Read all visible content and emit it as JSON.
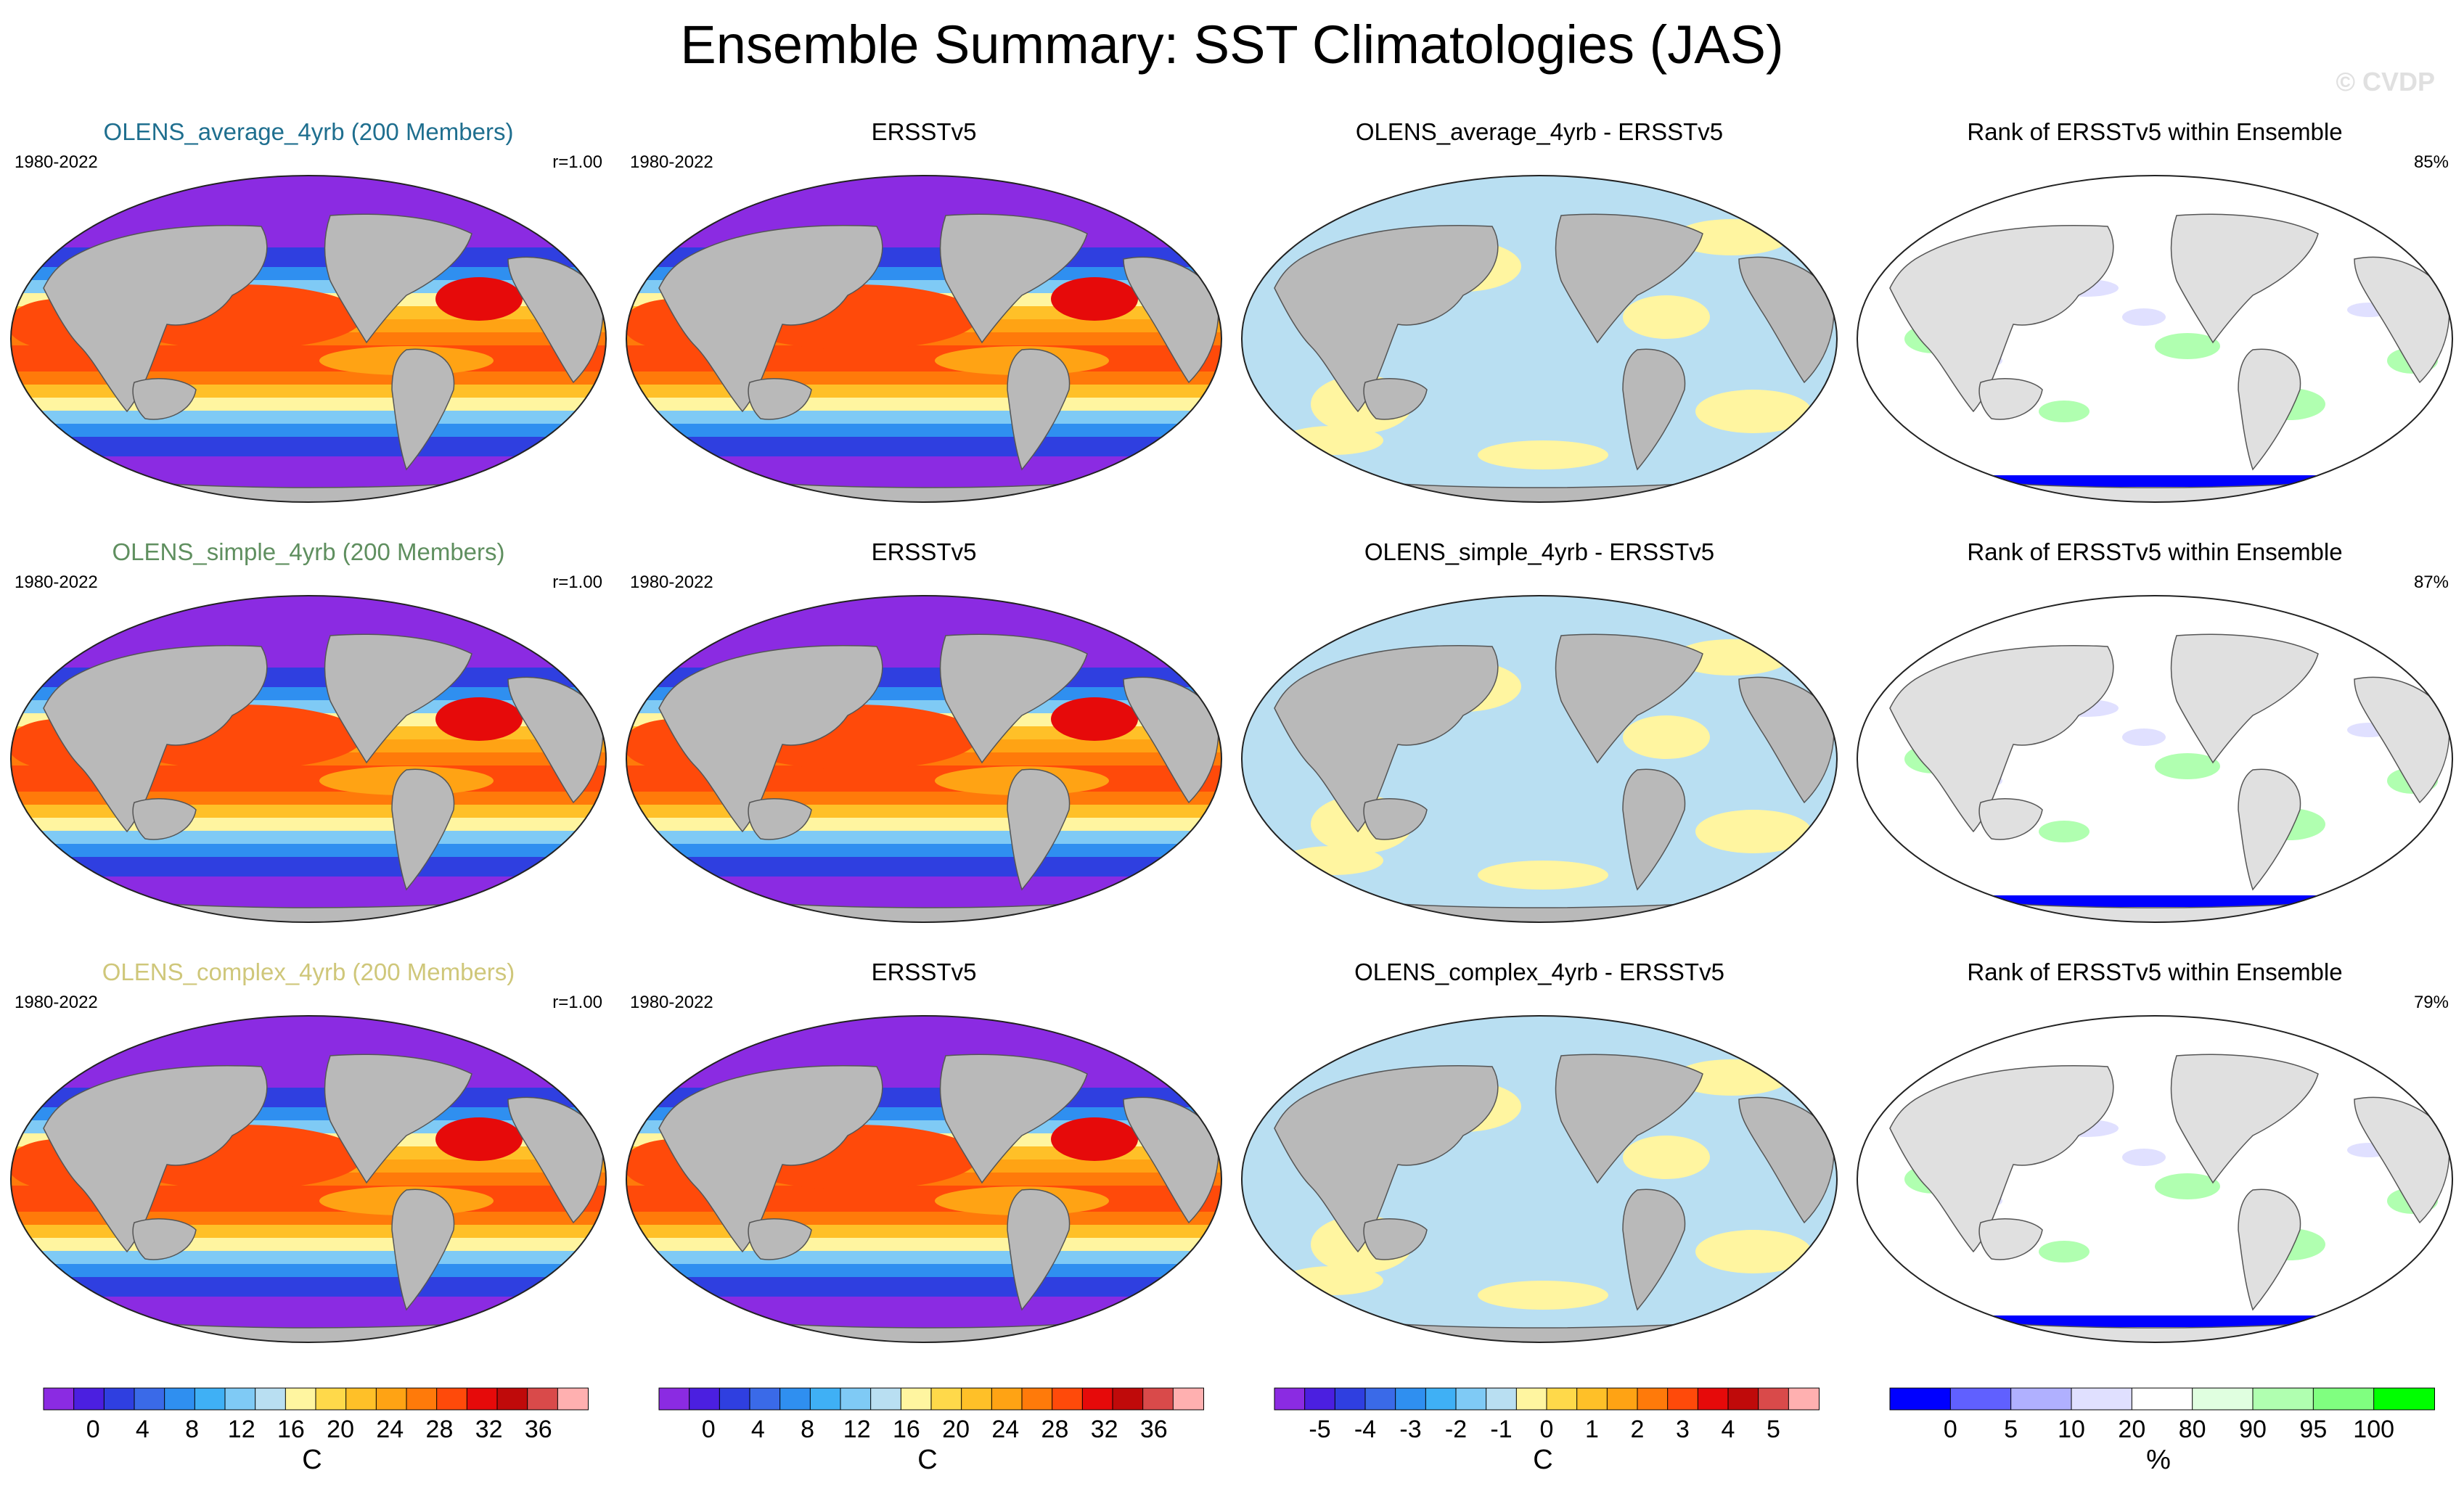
{
  "title": "Ensemble Summary: SST Climatologies (JAS)",
  "watermark": "© CVDP",
  "rows": [
    {
      "ensemble": {
        "title": "OLENS_average_4yrb (200 Members)",
        "title_color": "#1f6f8f",
        "period": "1980-2022",
        "corr": "r=1.00"
      },
      "observed": {
        "title": "ERSSTv5",
        "period": "1980-2022"
      },
      "difference": {
        "title": "OLENS_average_4yrb - ERSSTv5"
      },
      "rank": {
        "title": "Rank of ERSSTv5 within Ensemble",
        "percent": "85%"
      }
    },
    {
      "ensemble": {
        "title": "OLENS_simple_4yrb (200 Members)",
        "title_color": "#5f8f5f",
        "period": "1980-2022",
        "corr": "r=1.00"
      },
      "observed": {
        "title": "ERSSTv5",
        "period": "1980-2022"
      },
      "difference": {
        "title": "OLENS_simple_4yrb - ERSSTv5"
      },
      "rank": {
        "title": "Rank of ERSSTv5 within Ensemble",
        "percent": "87%"
      }
    },
    {
      "ensemble": {
        "title": "OLENS_complex_4yrb (200 Members)",
        "title_color": "#cfc77a",
        "period": "1980-2022",
        "corr": "r=1.00"
      },
      "observed": {
        "title": "ERSSTv5",
        "period": "1980-2022"
      },
      "difference": {
        "title": "OLENS_complex_4yrb - ERSSTv5"
      },
      "rank": {
        "title": "Rank of ERSSTv5 within Ensemble",
        "percent": "79%"
      }
    }
  ],
  "colorbars": {
    "sst": {
      "colors": [
        "#8b2be2",
        "#4b1fe0",
        "#2f3fe0",
        "#3a6ae8",
        "#2f8ff0",
        "#3fb0f5",
        "#7fcaf5",
        "#b9dff2",
        "#fff5a0",
        "#ffd94a",
        "#ffc028",
        "#ffa314",
        "#ff7a0a",
        "#ff4a0a",
        "#e60a0a",
        "#bf0a0a",
        "#d94a4a",
        "#ffb0b0"
      ],
      "ticks": [
        "0",
        "4",
        "8",
        "12",
        "16",
        "20",
        "24",
        "28",
        "32",
        "36"
      ],
      "unit": "C"
    },
    "diff": {
      "colors": [
        "#8b2be2",
        "#4b1fe0",
        "#2f3fe0",
        "#3a6ae8",
        "#2f8ff0",
        "#3fb0f5",
        "#7fcaf5",
        "#b9dff2",
        "#fff5a0",
        "#ffd94a",
        "#ffc028",
        "#ffa314",
        "#ff7a0a",
        "#ff4a0a",
        "#e60a0a",
        "#bf0a0a",
        "#d94a4a",
        "#ffb0b0"
      ],
      "ticks": [
        "-5",
        "-4",
        "-3",
        "-2",
        "-1",
        "0",
        "1",
        "2",
        "3",
        "4",
        "5"
      ],
      "unit": "C"
    },
    "rank": {
      "colors": [
        "#0000ff",
        "#6060ff",
        "#b0b0ff",
        "#e0e0ff",
        "#ffffff",
        "#e0ffe0",
        "#b0ffb0",
        "#80ff80",
        "#00ff00"
      ],
      "ticks": [
        "0",
        "5",
        "10",
        "20",
        "80",
        "90",
        "95",
        "100"
      ],
      "unit": "%"
    }
  },
  "chart_data": [
    {
      "type": "heatmap",
      "panel": "ensemble mean SST",
      "variable": "SST",
      "unit": "C",
      "levels": [
        0,
        2,
        4,
        6,
        8,
        10,
        12,
        14,
        16,
        18,
        20,
        22,
        24,
        26,
        28,
        30,
        32,
        34,
        36
      ]
    },
    {
      "type": "heatmap",
      "panel": "observed SST",
      "variable": "SST",
      "unit": "C",
      "levels": [
        0,
        2,
        4,
        6,
        8,
        10,
        12,
        14,
        16,
        18,
        20,
        22,
        24,
        26,
        28,
        30,
        32,
        34,
        36
      ]
    },
    {
      "type": "heatmap",
      "panel": "ensemble minus observed",
      "unit": "C",
      "levels": [
        -5,
        -4,
        -3,
        -2,
        -1,
        0,
        1,
        2,
        3,
        4,
        5
      ]
    },
    {
      "type": "heatmap",
      "panel": "rank of observed within ensemble",
      "unit": "%",
      "levels": [
        0,
        5,
        10,
        20,
        80,
        90,
        95,
        100
      ],
      "summary_percent": [
        85,
        87,
        79
      ]
    }
  ]
}
